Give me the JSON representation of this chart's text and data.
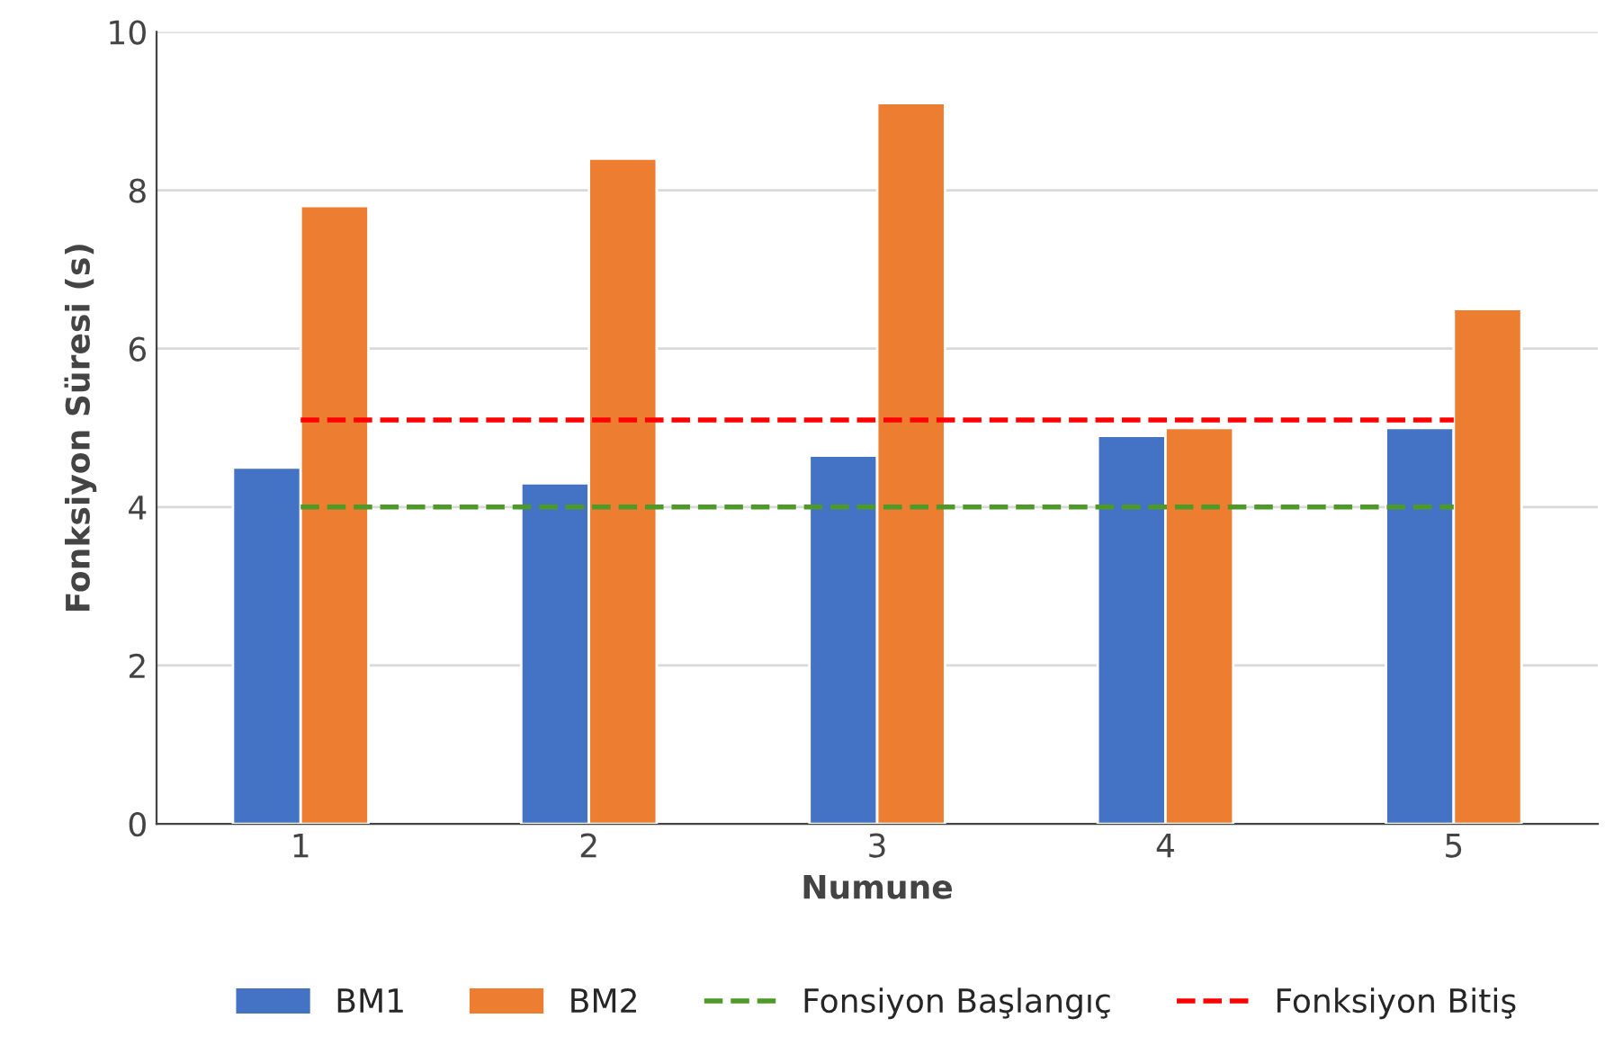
{
  "chart_data": {
    "type": "bar",
    "xlabel": "Numune",
    "ylabel": "Fonksiyon Süresi (s)",
    "categories": [
      "1",
      "2",
      "3",
      "4",
      "5"
    ],
    "series": [
      {
        "name": "BM1",
        "color": "#4472c4",
        "values": [
          4.5,
          4.3,
          4.65,
          4.9,
          5.0
        ]
      },
      {
        "name": "BM2",
        "color": "#ed7d31",
        "values": [
          7.8,
          8.4,
          9.1,
          5.0,
          6.5
        ]
      },
      {
        "name": "Fonsiyon Başlangıç",
        "type": "line",
        "line_style": "dashed",
        "color": "#4e9a28",
        "values": [
          4,
          4,
          4,
          4,
          4
        ]
      },
      {
        "name": "Fonksiyon Bitiş",
        "type": "line",
        "line_style": "dashed",
        "color": "#ff0000",
        "values": [
          5.1,
          5.1,
          5.1,
          5.1,
          5.1
        ]
      }
    ],
    "ylim": [
      0,
      10
    ],
    "yticks": [
      0,
      2,
      4,
      6,
      8,
      10
    ],
    "grid": "y",
    "legend": "bottom"
  }
}
